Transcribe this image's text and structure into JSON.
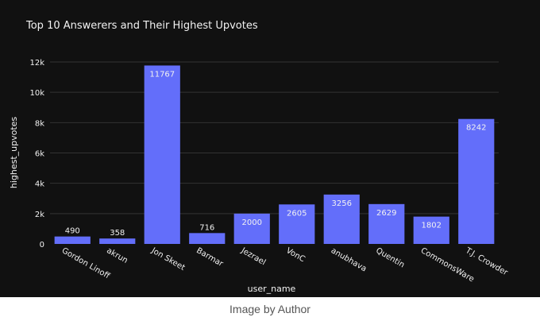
{
  "caption": "Image by Author",
  "colors": {
    "background": "#111111",
    "bar": "#636efa",
    "grid": "#333333",
    "text": "#f2f2f2",
    "caption": "#555555"
  },
  "chart_data": {
    "type": "bar",
    "title": "Top 10 Answerers and Their Highest Upvotes",
    "xlabel": "user_name",
    "ylabel": "highest_upvotes",
    "categories": [
      "Gordon Linoff",
      "akrun",
      "Jon Skeet",
      "Barmar",
      "Jezrael",
      "VonC",
      "anubhava",
      "Quentin",
      "CommonsWare",
      "T.J. Crowder"
    ],
    "values": [
      490,
      358,
      11767,
      716,
      2000,
      2605,
      3256,
      2629,
      1802,
      8242
    ],
    "ylim": [
      0,
      12000
    ],
    "yticks": [
      0,
      2000,
      4000,
      6000,
      8000,
      10000,
      12000
    ],
    "ytick_labels": [
      "0",
      "2k",
      "4k",
      "6k",
      "8k",
      "10k",
      "12k"
    ],
    "grid": true,
    "data_labels": true
  }
}
